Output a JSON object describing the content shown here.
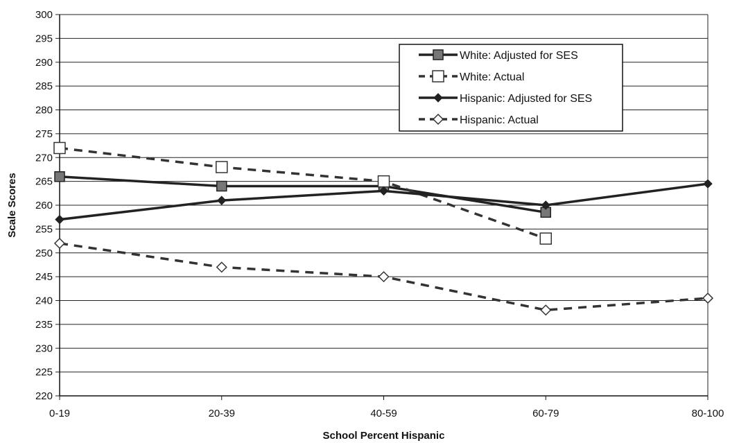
{
  "chart_data": {
    "type": "line",
    "title": "",
    "xlabel": "School Percent Hispanic",
    "ylabel": "Scale Scores",
    "categories": [
      "0-19",
      "20-39",
      "40-59",
      "60-79",
      "80-100"
    ],
    "ylim": [
      220,
      300
    ],
    "yticks": [
      220,
      225,
      230,
      235,
      240,
      245,
      250,
      255,
      260,
      265,
      270,
      275,
      280,
      285,
      290,
      295,
      300
    ],
    "grid": true,
    "legend_position": "top-right",
    "series": [
      {
        "name": "White: Adjusted for SES",
        "values": [
          266,
          264,
          264,
          258.5,
          null
        ],
        "line": "solid",
        "marker": "filled-square",
        "color": "#222222"
      },
      {
        "name": "White: Actual",
        "values": [
          272,
          268,
          265,
          253,
          null
        ],
        "line": "dashed",
        "marker": "open-square",
        "color": "#333333"
      },
      {
        "name": "Hispanic: Adjusted for SES",
        "values": [
          257,
          261,
          263,
          260,
          264.5
        ],
        "line": "solid",
        "marker": "filled-diamond",
        "color": "#222222"
      },
      {
        "name": "Hispanic: Actual",
        "values": [
          252,
          247,
          245,
          238,
          240.5
        ],
        "line": "dashed",
        "marker": "open-diamond",
        "color": "#333333"
      }
    ]
  }
}
